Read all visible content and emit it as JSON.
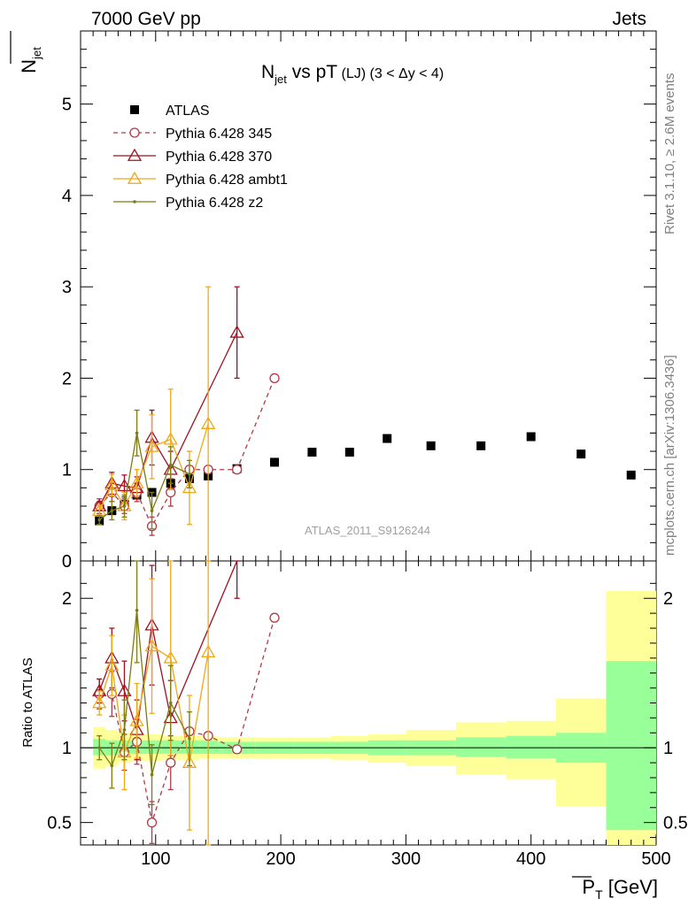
{
  "header": {
    "left": "7000 GeV pp",
    "right": "Jets"
  },
  "chart_data": {
    "type": "scatter",
    "title_main": "N",
    "title_sub": "jet",
    "title_rest": " vs pT",
    "title_small": " (LJ) (3 < Δy < 4)",
    "ylabel_upper": "N",
    "ylabel_upper_sub": "jet",
    "ylabel_lower": "Ratio to ATLAS",
    "xlabel": "P",
    "xlabel_sub": "T",
    "xlabel_unit": " [GeV]",
    "watermark": "ATLAS_2011_S9126244",
    "side_text_top": "Rivet 3.1.10, ≥ 2.6M events",
    "side_text_bottom": "mcplots.cern.ch [arXiv:1306.3436]",
    "xlim": [
      40,
      500
    ],
    "ylim_upper": [
      0,
      5.8
    ],
    "ylim_lower": [
      0.35,
      2.25
    ],
    "x_ticks": [
      100,
      200,
      300,
      400,
      500
    ],
    "x_tick_labels": [
      "100",
      "200",
      "300",
      "400",
      "500"
    ],
    "y_ticks_upper": [
      1,
      2,
      3,
      4,
      5
    ],
    "y_tick_labels_upper": [
      "1",
      "2",
      "3",
      "4",
      "5"
    ],
    "y_zero_label": "0",
    "y_ticks_lower": [
      0.5,
      1,
      2
    ],
    "y_tick_labels_lower": [
      "0.5",
      "1",
      "2"
    ],
    "legend_position": "top-left",
    "series": [
      {
        "name": "ATLAS",
        "color": "#000000",
        "marker": "square",
        "x": [
          55,
          65,
          75,
          85,
          97,
          112,
          127,
          142,
          165,
          195,
          225,
          255,
          285,
          320,
          360,
          400,
          440,
          480
        ],
        "y": [
          0.44,
          0.55,
          0.62,
          0.72,
          0.75,
          0.85,
          0.9,
          0.93,
          1.01,
          1.08,
          1.19,
          1.19,
          1.34,
          1.26,
          1.26,
          1.36,
          1.17,
          0.94
        ]
      },
      {
        "name": "Pythia 6.428 345",
        "color": "#b03a48",
        "marker": "circle",
        "dashed": true,
        "x": [
          55,
          65,
          75,
          85,
          97,
          112,
          127,
          142,
          165,
          195
        ],
        "y": [
          0.6,
          0.75,
          0.6,
          0.75,
          0.38,
          0.75,
          1.0,
          1.0,
          1.0,
          2.0
        ],
        "err": [
          0.08,
          0.1,
          0.08,
          0.1,
          0.1,
          0.15,
          0,
          0,
          0,
          0
        ],
        "ratio": [
          1.36,
          1.36,
          0.97,
          1.04,
          0.5,
          0.9,
          1.11,
          1.08,
          0.99,
          1.87
        ],
        "ratio_err": [
          0.1,
          0.15,
          0.12,
          0.15,
          0.14,
          0.18,
          0,
          0,
          0,
          0
        ]
      },
      {
        "name": "Pythia 6.428 370",
        "color": "#a01020",
        "marker": "triangle",
        "x": [
          55,
          65,
          75,
          85,
          97,
          112,
          165
        ],
        "y": [
          0.6,
          0.85,
          0.82,
          0.8,
          1.35,
          1.0,
          2.5
        ],
        "err": [
          0.05,
          0.12,
          0.12,
          0.12,
          0.3,
          0.2,
          0.5
        ],
        "ratio": [
          1.38,
          1.6,
          1.38,
          1.12,
          1.82,
          1.2,
          2.5
        ],
        "ratio_err": [
          0.08,
          0.2,
          0.2,
          0.2,
          0.4,
          0.25,
          0.5
        ]
      },
      {
        "name": "Pythia 6.428 ambt1",
        "color": "#f0a818",
        "marker": "triangle",
        "x": [
          55,
          65,
          75,
          85,
          97,
          112,
          127,
          142
        ],
        "y": [
          0.55,
          0.83,
          0.6,
          0.85,
          1.25,
          1.33,
          0.8,
          1.5
        ],
        "err": [
          0.06,
          0.12,
          0.15,
          0.15,
          0.35,
          0.55,
          0.4,
          1.5
        ],
        "ratio": [
          1.3,
          1.55,
          0.97,
          1.18,
          1.68,
          1.6,
          0.9,
          1.64
        ],
        "ratio_err": [
          0.08,
          0.2,
          0.25,
          0.25,
          0.45,
          0.65,
          0.45,
          1.6
        ]
      },
      {
        "name": "Pythia 6.428 z2",
        "color": "#7c7c10",
        "marker": "dot",
        "x": [
          55,
          65,
          75,
          85,
          97,
          112,
          127
        ],
        "y": [
          0.45,
          0.55,
          0.6,
          1.4,
          0.55,
          1.05,
          0.95
        ],
        "err": [
          0.05,
          0.1,
          0.12,
          0.25,
          0.2,
          0.2,
          0.15
        ],
        "ratio": [
          1.0,
          0.88,
          1.12,
          1.92,
          0.82,
          1.3,
          1.06
        ],
        "ratio_err": [
          0.08,
          0.15,
          0.2,
          0.35,
          0.2,
          0.25,
          0.18
        ]
      }
    ],
    "uncertainty_bands": {
      "green_color": "#99ff99",
      "yellow_color": "#ffff99",
      "bins": [
        {
          "x": [
            50,
            60
          ],
          "g": [
            0.95,
            1.06
          ],
          "y": [
            0.86,
            1.14
          ]
        },
        {
          "x": [
            60,
            70
          ],
          "g": [
            0.95,
            1.05
          ],
          "y": [
            0.88,
            1.12
          ]
        },
        {
          "x": [
            70,
            80
          ],
          "g": [
            0.96,
            1.05
          ],
          "y": [
            0.9,
            1.1
          ]
        },
        {
          "x": [
            80,
            90
          ],
          "g": [
            0.96,
            1.05
          ],
          "y": [
            0.91,
            1.09
          ]
        },
        {
          "x": [
            90,
            105
          ],
          "g": [
            0.96,
            1.05
          ],
          "y": [
            0.91,
            1.09
          ]
        },
        {
          "x": [
            105,
            120
          ],
          "g": [
            0.96,
            1.05
          ],
          "y": [
            0.92,
            1.08
          ]
        },
        {
          "x": [
            120,
            135
          ],
          "g": [
            0.96,
            1.05
          ],
          "y": [
            0.92,
            1.08
          ]
        },
        {
          "x": [
            135,
            150
          ],
          "g": [
            0.96,
            1.05
          ],
          "y": [
            0.93,
            1.08
          ]
        },
        {
          "x": [
            150,
            180
          ],
          "g": [
            0.96,
            1.04
          ],
          "y": [
            0.93,
            1.07
          ]
        },
        {
          "x": [
            180,
            210
          ],
          "g": [
            0.96,
            1.04
          ],
          "y": [
            0.93,
            1.07
          ]
        },
        {
          "x": [
            210,
            240
          ],
          "g": [
            0.96,
            1.04
          ],
          "y": [
            0.93,
            1.07
          ]
        },
        {
          "x": [
            240,
            270
          ],
          "g": [
            0.96,
            1.04
          ],
          "y": [
            0.92,
            1.08
          ]
        },
        {
          "x": [
            270,
            300
          ],
          "g": [
            0.95,
            1.05
          ],
          "y": [
            0.9,
            1.09
          ]
        },
        {
          "x": [
            300,
            340
          ],
          "g": [
            0.95,
            1.05
          ],
          "y": [
            0.88,
            1.12
          ]
        },
        {
          "x": [
            340,
            380
          ],
          "g": [
            0.94,
            1.07
          ],
          "y": [
            0.82,
            1.17
          ]
        },
        {
          "x": [
            380,
            420
          ],
          "g": [
            0.93,
            1.08
          ],
          "y": [
            0.79,
            1.18
          ]
        },
        {
          "x": [
            420,
            460
          ],
          "g": [
            0.9,
            1.1
          ],
          "y": [
            0.61,
            1.33
          ]
        },
        {
          "x": [
            460,
            500
          ],
          "g": [
            0.45,
            1.58
          ],
          "y": [
            0.35,
            2.05
          ]
        }
      ]
    }
  }
}
